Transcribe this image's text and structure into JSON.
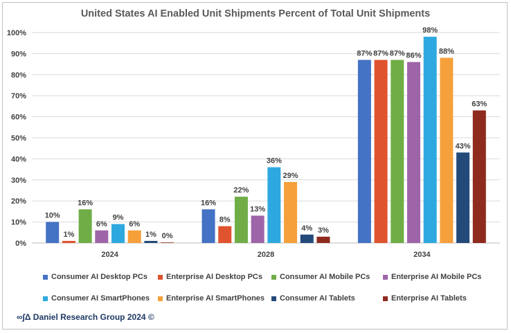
{
  "chart_data": {
    "type": "bar",
    "title": "United States AI Enabled Unit Shipments Percent of Total Unit Shipments",
    "xlabel": "",
    "ylabel": "",
    "categories": [
      "2024",
      "2028",
      "2034"
    ],
    "ylim": [
      0,
      100
    ],
    "yticks": [
      0,
      10,
      20,
      30,
      40,
      50,
      60,
      70,
      80,
      90,
      100
    ],
    "ytick_labels": [
      "0%",
      "10%",
      "20%",
      "30%",
      "40%",
      "50%",
      "60%",
      "70%",
      "80%",
      "90%",
      "100%"
    ],
    "grid": true,
    "legend_position": "bottom",
    "series": [
      {
        "name": "Consumer AI Desktop PCs",
        "color": "#4472c4",
        "values": [
          10,
          16,
          87
        ],
        "labels": [
          "10%",
          "16%",
          "87%"
        ]
      },
      {
        "name": "Enterprise AI Desktop PCs",
        "color": "#e0532f",
        "values": [
          1,
          8,
          87
        ],
        "labels": [
          "1%",
          "8%",
          "87%"
        ]
      },
      {
        "name": "Consumer AI Mobile PCs",
        "color": "#70ad47",
        "values": [
          16,
          22,
          87
        ],
        "labels": [
          "16%",
          "22%",
          "87%"
        ]
      },
      {
        "name": "Enterprise AI Mobile PCs",
        "color": "#9e64a8",
        "values": [
          6,
          13,
          86
        ],
        "labels": [
          "6%",
          "13%",
          "86%"
        ]
      },
      {
        "name": "Consumer AI SmartPhones",
        "color": "#2ea9df",
        "values": [
          9,
          36,
          98
        ],
        "labels": [
          "9%",
          "36%",
          "98%"
        ]
      },
      {
        "name": "Enterprise AI SmartPhones",
        "color": "#f6a03c",
        "values": [
          6,
          29,
          88
        ],
        "labels": [
          "6%",
          "29%",
          "88%"
        ]
      },
      {
        "name": "Consumer AI Tablets",
        "color": "#244a7a",
        "values": [
          1,
          4,
          43
        ],
        "labels": [
          "1%",
          "4%",
          "43%"
        ]
      },
      {
        "name": "Enterprise AI Tablets",
        "color": "#8e2a1e",
        "values": [
          0,
          3,
          63
        ],
        "labels": [
          "0%",
          "3%",
          "63%"
        ]
      }
    ]
  },
  "footer": {
    "text": "∞∫Δ Daniel Research Group 2024 ©"
  }
}
